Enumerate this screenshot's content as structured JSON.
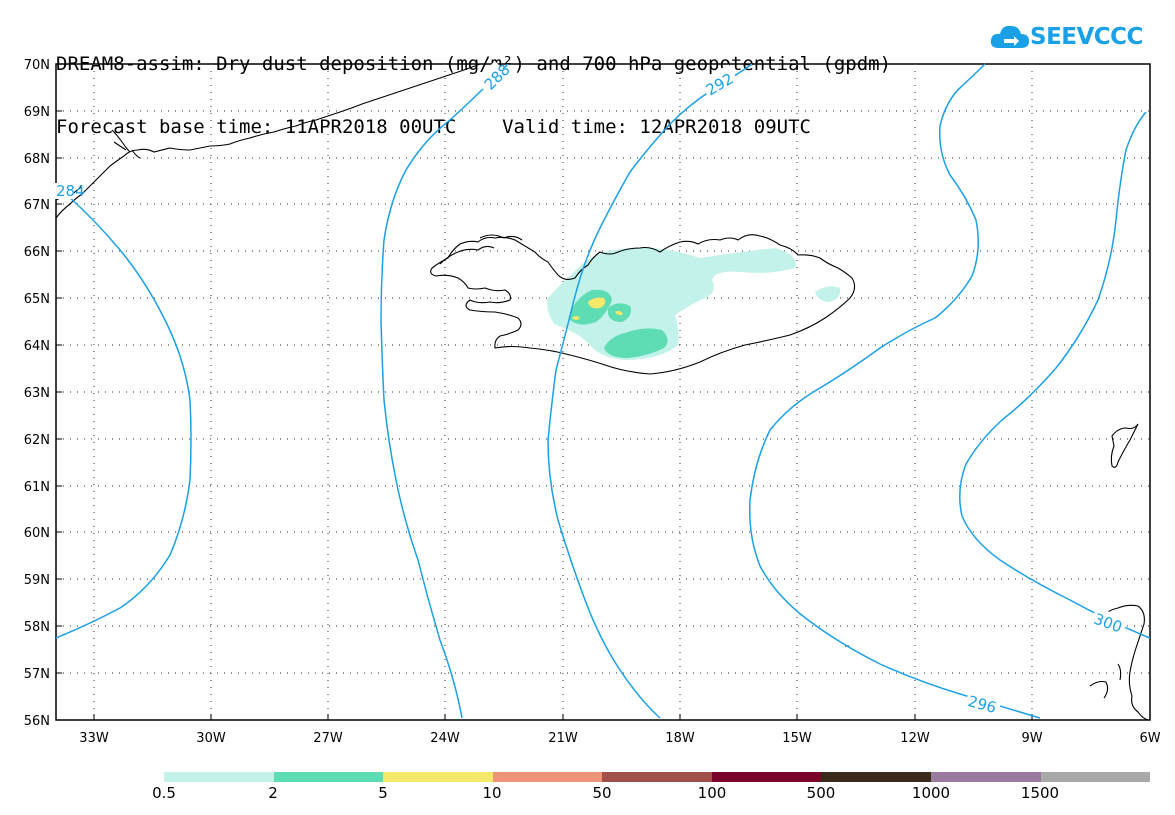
{
  "title": {
    "line1": "DREAM8-assim: Dry dust deposition (mg/m²) and 700 hPa geopotential (gpdm)",
    "line2": "Forecast base time: 11APR2018 00UTC    Valid time: 12APR2018 09UTC"
  },
  "logo": {
    "text": "SEEVCCC",
    "icon": "cloud-arrow-icon"
  },
  "map": {
    "lat_labels": [
      "70N",
      "69N",
      "68N",
      "67N",
      "66N",
      "65N",
      "64N",
      "63N",
      "62N",
      "61N",
      "60N",
      "59N",
      "58N",
      "57N",
      "56N"
    ],
    "lon_labels": [
      "33W",
      "30W",
      "27W",
      "24W",
      "21W",
      "18W",
      "15W",
      "12W",
      "9W",
      "6W"
    ],
    "contour_labels": [
      "284",
      "288",
      "292",
      "296",
      "300"
    ],
    "contour_color": "#1aa0e6"
  },
  "legend": {
    "colors": [
      "#c3f2ea",
      "#5edcb4",
      "#f5e96c",
      "#ef9476",
      "#a2504a",
      "#7a0429",
      "#3a2a1a",
      "#9a7a9e",
      "#a9a9a9"
    ],
    "labels": [
      "0.5",
      "2",
      "5",
      "10",
      "50",
      "100",
      "500",
      "1000",
      "1500"
    ]
  }
}
